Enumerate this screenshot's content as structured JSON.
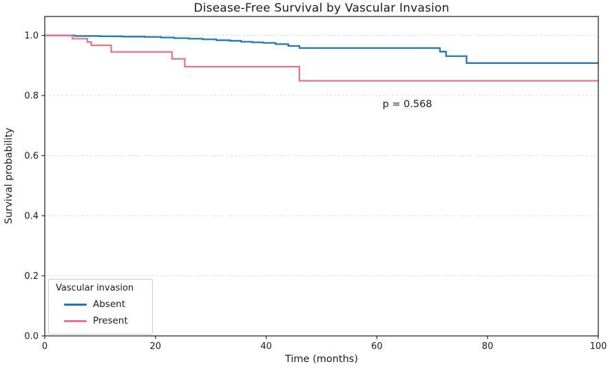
{
  "chart_data": {
    "type": "line",
    "subtype": "kaplan-meier-step",
    "title": "Disease-Free Survival by Vascular Invasion",
    "xlabel": "Time (months)",
    "ylabel": "Survival probability",
    "xlim": [
      0,
      100
    ],
    "ylim": [
      0,
      1.063
    ],
    "x_ticks": [
      {
        "v": 0,
        "label": "0"
      },
      {
        "v": 20,
        "label": "20"
      },
      {
        "v": 40,
        "label": "40"
      },
      {
        "v": 60,
        "label": "60"
      },
      {
        "v": 80,
        "label": "80"
      },
      {
        "v": 100,
        "label": "100"
      }
    ],
    "y_ticks": [
      {
        "v": 0.0,
        "label": "0.0"
      },
      {
        "v": 0.2,
        "label": "0.2"
      },
      {
        "v": 0.4,
        "label": "0.4"
      },
      {
        "v": 0.6,
        "label": "0.6"
      },
      {
        "v": 0.8,
        "label": "0.8"
      },
      {
        "v": 1.0,
        "label": "1.0"
      }
    ],
    "grid": {
      "horizontal_dashed": true,
      "at": [
        0.2,
        0.4,
        0.6,
        0.8,
        1.0
      ],
      "color": "#d9d9d9"
    },
    "spine_color": "#262626",
    "background": "#ffffff",
    "annotation": {
      "text": "p = 0.568",
      "x": 65.5,
      "y": 0.77
    },
    "legend": {
      "title": "Vascular invasion",
      "position": "lower-left"
    },
    "series": [
      {
        "name": "Absent",
        "color": "#1f77b4",
        "steps": [
          [
            0,
            1.0
          ],
          [
            5.4,
            0.998
          ],
          [
            10,
            0.997
          ],
          [
            14,
            0.996
          ],
          [
            18,
            0.995
          ],
          [
            21,
            0.993
          ],
          [
            23.4,
            0.991
          ],
          [
            26,
            0.989
          ],
          [
            28.5,
            0.987
          ],
          [
            31,
            0.984
          ],
          [
            33.5,
            0.982
          ],
          [
            35.5,
            0.979
          ],
          [
            37.5,
            0.977
          ],
          [
            39.5,
            0.975
          ],
          [
            41.7,
            0.971
          ],
          [
            44,
            0.965
          ],
          [
            46,
            0.958
          ],
          [
            71.4,
            0.946
          ],
          [
            72.5,
            0.931
          ],
          [
            76.2,
            0.908
          ],
          [
            100,
            0.908
          ]
        ]
      },
      {
        "name": "Present",
        "color": "#e8748a",
        "steps": [
          [
            0,
            1.0
          ],
          [
            5,
            0.989
          ],
          [
            7.7,
            0.978
          ],
          [
            8.4,
            0.967
          ],
          [
            12,
            0.945
          ],
          [
            23,
            0.922
          ],
          [
            25.3,
            0.896
          ],
          [
            46,
            0.849
          ],
          [
            100,
            0.849
          ]
        ]
      }
    ]
  }
}
